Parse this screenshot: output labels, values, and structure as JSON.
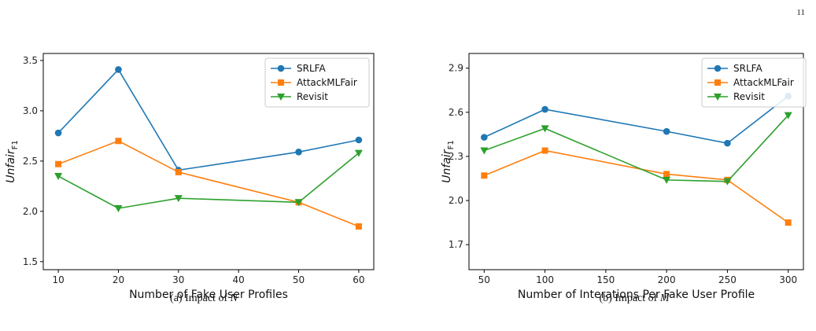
{
  "page_number": "11",
  "colors": {
    "SRLFA": "#1f77b4",
    "AttackMLFair": "#ff7f0e",
    "Revisit": "#2ca02c"
  },
  "chart_data": [
    {
      "type": "line",
      "caption_prefix": "(a) Impact of ",
      "caption_var": "N",
      "xlabel": "Number of Fake User Profiles",
      "ylabel_main": "Unfair",
      "ylabel_sub": "F1",
      "x": [
        10,
        20,
        30,
        50,
        60
      ],
      "xticks": [
        10,
        20,
        30,
        40,
        50,
        60
      ],
      "xlim": [
        7.5,
        62.5
      ],
      "yticks": [
        1.5,
        2.0,
        2.5,
        3.0,
        3.5
      ],
      "ytick_labels": [
        "1.5",
        "2.0",
        "2.5",
        "3.0",
        "3.5"
      ],
      "ylim": [
        1.42,
        3.57
      ],
      "legend": "top-right",
      "series": [
        {
          "name": "SRLFA",
          "marker": "circle",
          "values": [
            2.78,
            3.41,
            2.41,
            2.59,
            2.71
          ]
        },
        {
          "name": "AttackMLFair",
          "marker": "square",
          "values": [
            2.47,
            2.7,
            2.39,
            2.09,
            1.85
          ]
        },
        {
          "name": "Revisit",
          "marker": "triangle-down",
          "values": [
            2.35,
            2.03,
            2.13,
            2.09,
            2.58
          ]
        }
      ]
    },
    {
      "type": "line",
      "caption_prefix": "(b) Impact of ",
      "caption_var": "M",
      "xlabel": "Number of Interations Per Fake User Profile",
      "ylabel_main": "Unfair",
      "ylabel_sub": "F1",
      "x": [
        50,
        100,
        200,
        250,
        300
      ],
      "xticks": [
        50,
        100,
        150,
        200,
        250,
        300
      ],
      "xlim": [
        37.5,
        312.5
      ],
      "yticks": [
        1.7,
        2.0,
        2.3,
        2.6,
        2.9
      ],
      "ytick_labels": [
        "1.7",
        "2.0",
        "2.3",
        "2.6",
        "2.9"
      ],
      "ylim": [
        1.53,
        3.0
      ],
      "legend": "top-right",
      "series": [
        {
          "name": "SRLFA",
          "marker": "circle",
          "values": [
            2.43,
            2.62,
            2.47,
            2.39,
            2.71
          ]
        },
        {
          "name": "AttackMLFair",
          "marker": "square",
          "values": [
            2.17,
            2.34,
            2.18,
            2.14,
            1.85
          ]
        },
        {
          "name": "Revisit",
          "marker": "triangle-down",
          "values": [
            2.34,
            2.49,
            2.14,
            2.13,
            2.58
          ]
        }
      ]
    }
  ]
}
